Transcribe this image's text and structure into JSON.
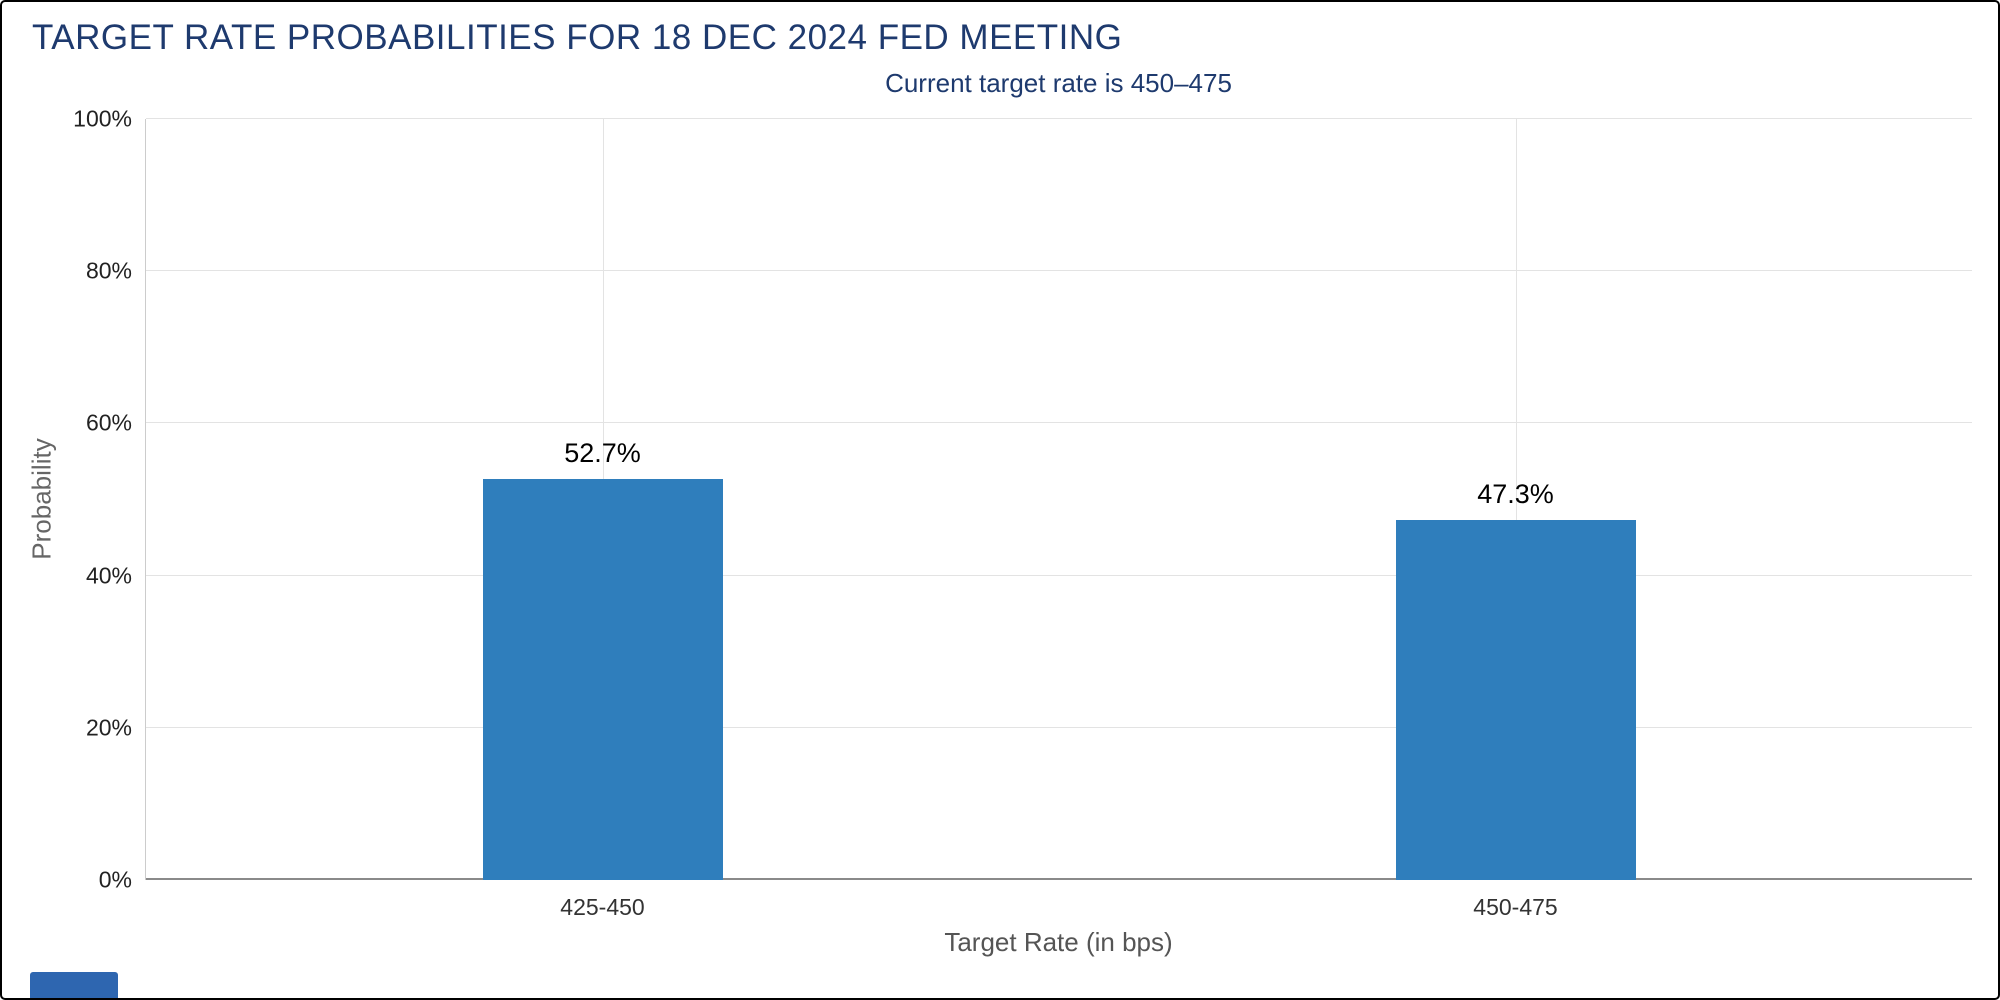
{
  "header": {
    "title": "TARGET RATE PROBABILITIES FOR 18 DEC 2024 FED MEETING",
    "subtitle": "Current target rate is 450–475"
  },
  "chart_data": {
    "type": "bar",
    "title": "TARGET RATE PROBABILITIES FOR 18 DEC 2024 FED MEETING",
    "subtitle": "Current target rate is 450–475",
    "categories": [
      "425-450",
      "450-475"
    ],
    "values": [
      52.7,
      47.3
    ],
    "value_labels": [
      "52.7%",
      "47.3%"
    ],
    "xlabel": "Target Rate (in bps)",
    "ylabel": "Probability",
    "ylim": [
      0,
      100
    ],
    "yticks": [
      0,
      20,
      40,
      60,
      80,
      100
    ],
    "ytick_labels": [
      "0%",
      "20%",
      "40%",
      "60%",
      "80%",
      "100%"
    ],
    "grid": true,
    "legend": "none",
    "bar_color": "#2f7ebc"
  },
  "colors": {
    "title_text": "#1e3a6e",
    "bar_fill": "#2f7ebc",
    "gridline": "#e3e3e3",
    "axis_line": "#8a8a8a",
    "logo_blue": "#2e66b0"
  }
}
